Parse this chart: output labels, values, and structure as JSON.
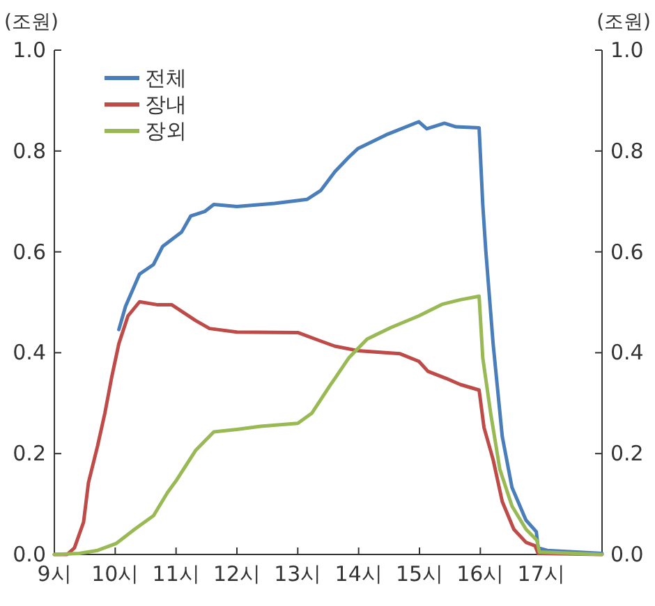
{
  "chart_data": {
    "type": "line",
    "ylabel": "(조원)",
    "y2label": "(조원)",
    "xlim": [
      9,
      18
    ],
    "ylim": [
      0,
      1.0
    ],
    "y2lim": [
      0,
      1.0
    ],
    "xticks": [
      {
        "value": 9,
        "label": "9시"
      },
      {
        "value": 10,
        "label": "10시"
      },
      {
        "value": 11,
        "label": "11시"
      },
      {
        "value": 12,
        "label": "12시"
      },
      {
        "value": 13,
        "label": "13시"
      },
      {
        "value": 14,
        "label": "14시"
      },
      {
        "value": 15,
        "label": "15시"
      },
      {
        "value": 16,
        "label": "16시"
      },
      {
        "value": 17,
        "label": "17시"
      }
    ],
    "yticks": [
      {
        "value": 0,
        "label": "0.0"
      },
      {
        "value": 0.2,
        "label": "0.2"
      },
      {
        "value": 0.4,
        "label": "0.4"
      },
      {
        "value": 0.6,
        "label": "0.6"
      },
      {
        "value": 0.8,
        "label": "0.8"
      },
      {
        "value": 1.0,
        "label": "1.0"
      }
    ],
    "y2ticks": [
      {
        "value": 0,
        "label": "0.0"
      },
      {
        "value": 0.2,
        "label": "0.2"
      },
      {
        "value": 0.4,
        "label": "0.4"
      },
      {
        "value": 0.6,
        "label": "0.6"
      },
      {
        "value": 0.8,
        "label": "0.8"
      },
      {
        "value": 1.0,
        "label": "1.0"
      }
    ],
    "legend": "top left",
    "grid": false,
    "marker": "none",
    "line_style": "solid",
    "series": [
      {
        "name": "전체",
        "color": "#4a7ebb",
        "x": [
          10.06,
          10.17,
          10.4,
          10.63,
          10.78,
          11.09,
          11.24,
          11.47,
          11.62,
          12.0,
          12.62,
          13.15,
          13.38,
          13.61,
          13.84,
          13.99,
          14.45,
          14.99,
          15.12,
          15.41,
          15.6,
          15.98,
          16.04,
          16.09,
          16.21,
          16.36,
          16.52,
          16.75,
          16.92,
          16.95,
          17.1,
          18.0
        ],
        "values": [
          0.446,
          0.492,
          0.556,
          0.575,
          0.611,
          0.639,
          0.671,
          0.68,
          0.694,
          0.69,
          0.696,
          0.704,
          0.722,
          0.759,
          0.788,
          0.805,
          0.832,
          0.858,
          0.844,
          0.855,
          0.848,
          0.846,
          0.694,
          0.602,
          0.418,
          0.234,
          0.133,
          0.068,
          0.045,
          0.013,
          0.008,
          0.002
        ]
      },
      {
        "name": "장내",
        "color": "#be4b48",
        "x": [
          9.0,
          9.21,
          9.33,
          9.48,
          9.56,
          9.71,
          9.83,
          9.94,
          10.06,
          10.21,
          10.4,
          10.7,
          10.93,
          11.32,
          11.55,
          12.0,
          13.0,
          13.38,
          13.61,
          13.99,
          14.68,
          14.99,
          15.14,
          15.44,
          15.67,
          15.98,
          16.06,
          16.21,
          16.36,
          16.55,
          16.75,
          16.9,
          16.95,
          18.0
        ],
        "values": [
          0,
          0,
          0.013,
          0.064,
          0.142,
          0.215,
          0.28,
          0.35,
          0.418,
          0.473,
          0.501,
          0.495,
          0.495,
          0.464,
          0.448,
          0.441,
          0.44,
          0.423,
          0.413,
          0.404,
          0.398,
          0.383,
          0.363,
          0.349,
          0.337,
          0.326,
          0.252,
          0.188,
          0.105,
          0.05,
          0.024,
          0.017,
          0.002,
          0
        ]
      },
      {
        "name": "장외",
        "color": "#98b954",
        "x": [
          9.0,
          9.41,
          9.71,
          10.02,
          10.32,
          10.63,
          10.86,
          11.0,
          11.32,
          11.62,
          12.0,
          12.39,
          13.0,
          13.23,
          13.53,
          13.61,
          13.84,
          14.14,
          14.53,
          14.99,
          15.37,
          15.67,
          15.98,
          16.04,
          16.17,
          16.32,
          16.52,
          16.75,
          16.93,
          16.97,
          18.0
        ],
        "values": [
          0,
          0.002,
          0.008,
          0.022,
          0.05,
          0.077,
          0.123,
          0.146,
          0.206,
          0.243,
          0.248,
          0.254,
          0.26,
          0.28,
          0.335,
          0.349,
          0.39,
          0.427,
          0.45,
          0.473,
          0.496,
          0.505,
          0.512,
          0.39,
          0.28,
          0.169,
          0.096,
          0.05,
          0.028,
          0.005,
          0
        ]
      }
    ]
  }
}
